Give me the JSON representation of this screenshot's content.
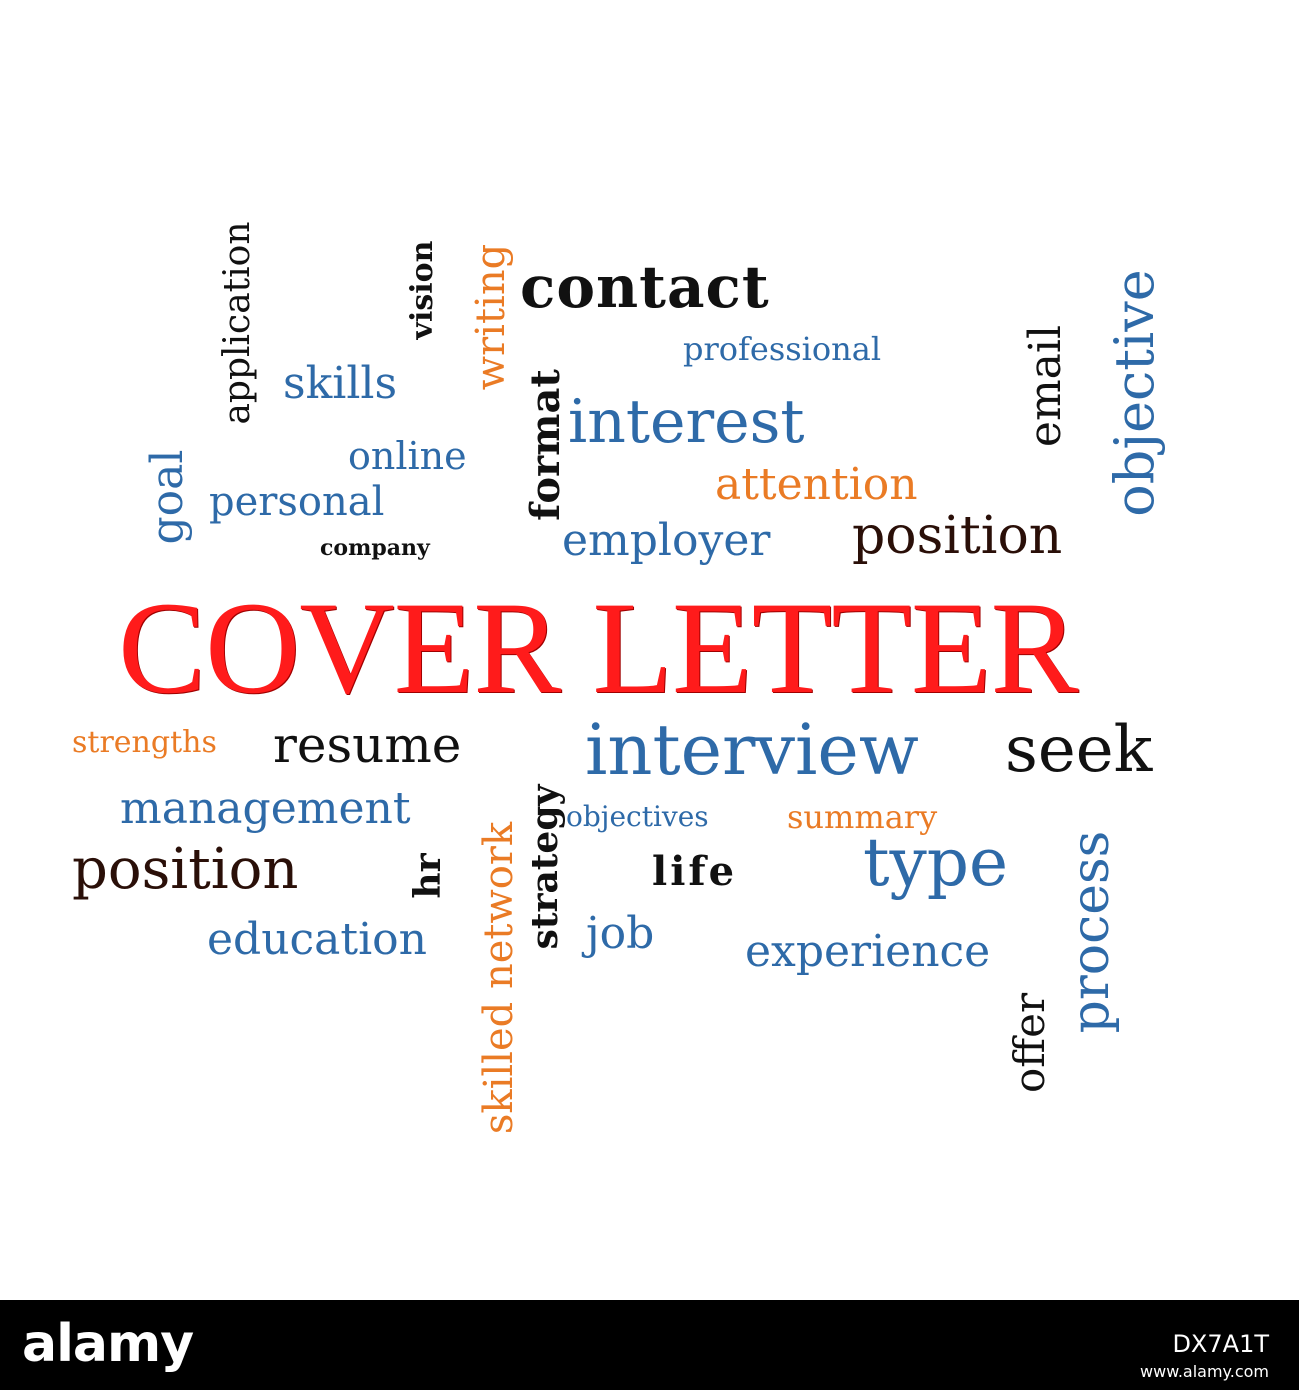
{
  "title": "COVER LETTER",
  "colors": {
    "title": "#ff1b1b",
    "blue": "#2e6aa8",
    "orange": "#ea7b25",
    "dark": "#111111",
    "brown": "#2a0f08"
  },
  "words": {
    "contact": "contact",
    "professional": "professional",
    "interest": "interest",
    "attention": "attention",
    "employer": "employer",
    "position_top": "position",
    "skills": "skills",
    "online": "online",
    "personal": "personal",
    "company": "company",
    "application": "application",
    "vision": "vision",
    "writing": "writing",
    "format": "format",
    "email": "email",
    "objective": "objective",
    "goal": "goal",
    "strengths": "strengths",
    "resume": "resume",
    "interview": "interview",
    "seek": "seek",
    "management": "management",
    "objectives": "objectives",
    "summary": "summary",
    "position_bottom": "position",
    "hr": "hr",
    "life": "life",
    "type": "type",
    "education": "education",
    "job": "job",
    "experience": "experience",
    "skilled_network": "skilled network",
    "strategy": "strategy",
    "process": "process",
    "offer": "offer"
  },
  "footer": {
    "logo": "alamy",
    "image_id": "DX7A1T",
    "site": "www.alamy.com"
  }
}
